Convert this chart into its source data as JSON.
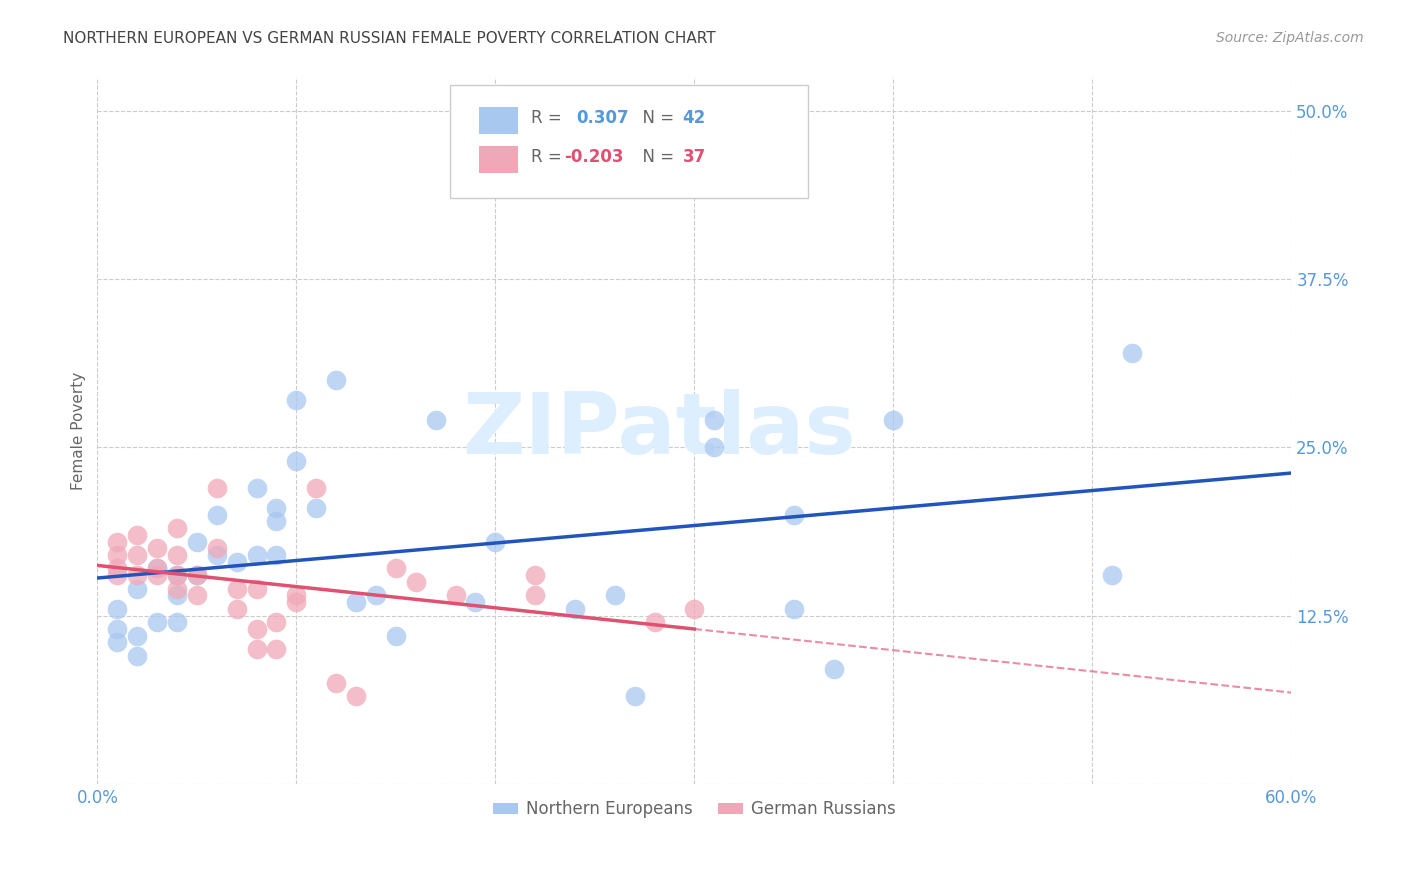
{
  "title": "NORTHERN EUROPEAN VS GERMAN RUSSIAN FEMALE POVERTY CORRELATION CHART",
  "source": "Source: ZipAtlas.com",
  "ylabel": "Female Poverty",
  "xlim": [
    0.0,
    0.6
  ],
  "ylim": [
    0.0,
    0.525
  ],
  "xticks": [
    0.0,
    0.1,
    0.2,
    0.3,
    0.4,
    0.5,
    0.6
  ],
  "xticklabels": [
    "0.0%",
    "",
    "",
    "",
    "",
    "",
    "60.0%"
  ],
  "yticks": [
    0.0,
    0.125,
    0.25,
    0.375,
    0.5
  ],
  "yticklabels": [
    "",
    "12.5%",
    "25.0%",
    "37.5%",
    "50.0%"
  ],
  "legend_r1_prefix": "R =  ",
  "legend_r1_val": "0.307",
  "legend_r1_mid": "   N = ",
  "legend_r1_n": "42",
  "legend_r2_prefix": "R = ",
  "legend_r2_val": "-0.203",
  "legend_r2_mid": "   N = ",
  "legend_r2_n": "37",
  "blue_color": "#a8c8f0",
  "pink_color": "#f0a8b8",
  "blue_line_color": "#2255bb",
  "pink_line_color": "#e05070",
  "grid_color": "#cccccc",
  "background_color": "#ffffff",
  "watermark_text": "ZIPatlas",
  "watermark_color": "#ddeeff",
  "ne_x": [
    0.01,
    0.01,
    0.01,
    0.02,
    0.02,
    0.02,
    0.03,
    0.03,
    0.04,
    0.04,
    0.04,
    0.05,
    0.05,
    0.06,
    0.06,
    0.07,
    0.08,
    0.08,
    0.09,
    0.09,
    0.09,
    0.1,
    0.1,
    0.11,
    0.12,
    0.13,
    0.14,
    0.15,
    0.17,
    0.19,
    0.2,
    0.24,
    0.26,
    0.27,
    0.31,
    0.31,
    0.35,
    0.35,
    0.37,
    0.4,
    0.51,
    0.52
  ],
  "ne_y": [
    0.115,
    0.105,
    0.13,
    0.145,
    0.11,
    0.095,
    0.12,
    0.16,
    0.12,
    0.14,
    0.155,
    0.18,
    0.155,
    0.2,
    0.17,
    0.165,
    0.17,
    0.22,
    0.195,
    0.205,
    0.17,
    0.285,
    0.24,
    0.205,
    0.3,
    0.135,
    0.14,
    0.11,
    0.27,
    0.135,
    0.18,
    0.13,
    0.14,
    0.065,
    0.25,
    0.27,
    0.2,
    0.13,
    0.085,
    0.27,
    0.155,
    0.32
  ],
  "gr_x": [
    0.01,
    0.01,
    0.01,
    0.01,
    0.02,
    0.02,
    0.02,
    0.03,
    0.03,
    0.03,
    0.04,
    0.04,
    0.04,
    0.04,
    0.05,
    0.05,
    0.06,
    0.06,
    0.07,
    0.07,
    0.08,
    0.08,
    0.08,
    0.09,
    0.09,
    0.1,
    0.1,
    0.11,
    0.12,
    0.13,
    0.15,
    0.16,
    0.18,
    0.22,
    0.22,
    0.28,
    0.3
  ],
  "gr_y": [
    0.155,
    0.16,
    0.17,
    0.18,
    0.155,
    0.17,
    0.185,
    0.155,
    0.16,
    0.175,
    0.145,
    0.155,
    0.17,
    0.19,
    0.14,
    0.155,
    0.175,
    0.22,
    0.13,
    0.145,
    0.1,
    0.115,
    0.145,
    0.1,
    0.12,
    0.135,
    0.14,
    0.22,
    0.075,
    0.065,
    0.16,
    0.15,
    0.14,
    0.155,
    0.14,
    0.12,
    0.13
  ],
  "title_fontsize": 11,
  "source_fontsize": 10,
  "tick_fontsize": 12,
  "ylabel_fontsize": 11,
  "legend_fontsize": 12
}
